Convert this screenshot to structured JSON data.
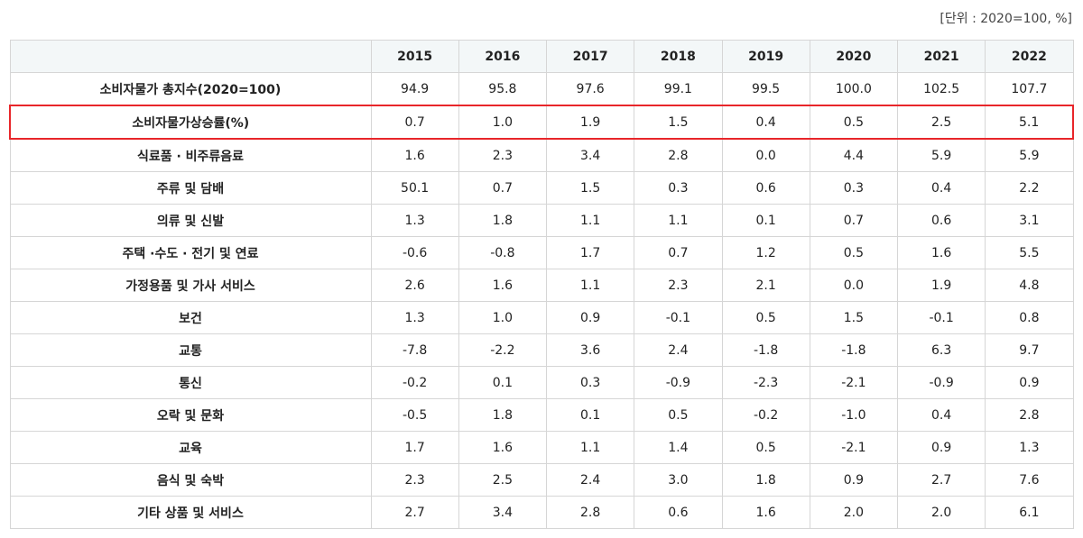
{
  "unit_note": "[단위 : 2020=100, %]",
  "table": {
    "header": [
      "2015",
      "2016",
      "2017",
      "2018",
      "2019",
      "2020",
      "2021",
      "2022"
    ],
    "rows": [
      [
        "소비자물가 총지수(2020=100)",
        "94.9",
        "95.8",
        "97.6",
        "99.1",
        "99.5",
        "100.0",
        "102.5",
        "107.7"
      ],
      [
        "소비자물가상승률(%)",
        "0.7",
        "1.0",
        "1.9",
        "1.5",
        "0.4",
        "0.5",
        "2.5",
        "5.1"
      ],
      [
        "식료품 · 비주류음료",
        "1.6",
        "2.3",
        "3.4",
        "2.8",
        "0.0",
        "4.4",
        "5.9",
        "5.9"
      ],
      [
        "주류 및 담배",
        "50.1",
        "0.7",
        "1.5",
        "0.3",
        "0.6",
        "0.3",
        "0.4",
        "2.2"
      ],
      [
        "의류 및 신발",
        "1.3",
        "1.8",
        "1.1",
        "1.1",
        "0.1",
        "0.7",
        "0.6",
        "3.1"
      ],
      [
        "주택 ·수도 · 전기 및 연료",
        "-0.6",
        "-0.8",
        "1.7",
        "0.7",
        "1.2",
        "0.5",
        "1.6",
        "5.5"
      ],
      [
        "가정용품 및 가사 서비스",
        "2.6",
        "1.6",
        "1.1",
        "2.3",
        "2.1",
        "0.0",
        "1.9",
        "4.8"
      ],
      [
        "보건",
        "1.3",
        "1.0",
        "0.9",
        "-0.1",
        "0.5",
        "1.5",
        "-0.1",
        "0.8"
      ],
      [
        "교통",
        "-7.8",
        "-2.2",
        "3.6",
        "2.4",
        "-1.8",
        "-1.8",
        "6.3",
        "9.7"
      ],
      [
        "통신",
        "-0.2",
        "0.1",
        "0.3",
        "-0.9",
        "-2.3",
        "-2.1",
        "-0.9",
        "0.9"
      ],
      [
        "오락 및 문화",
        "-0.5",
        "1.8",
        "0.1",
        "0.5",
        "-0.2",
        "-1.0",
        "0.4",
        "2.8"
      ],
      [
        "교육",
        "1.7",
        "1.6",
        "1.1",
        "1.4",
        "0.5",
        "-2.1",
        "0.9",
        "1.3"
      ],
      [
        "음식 및 숙박",
        "2.3",
        "2.5",
        "2.4",
        "3.0",
        "1.8",
        "0.9",
        "2.7",
        "7.6"
      ],
      [
        "기타 상품 및 서비스",
        "2.7",
        "3.4",
        "2.8",
        "0.6",
        "1.6",
        "2.0",
        "2.0",
        "6.1"
      ]
    ]
  }
}
